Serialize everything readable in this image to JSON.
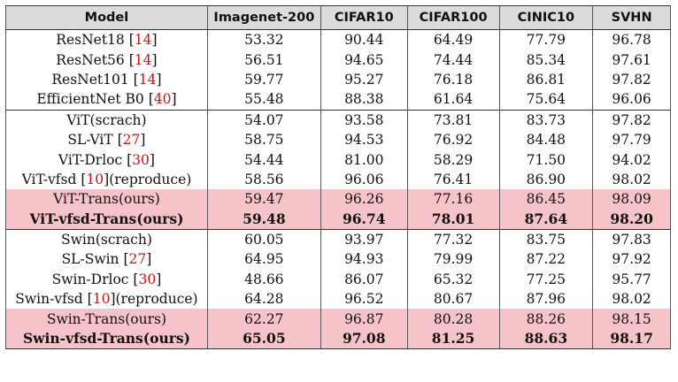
{
  "headers": [
    "Model",
    "Imagenet-200",
    "CIFAR10",
    "CIFAR100",
    "CINIC10",
    "SVHN"
  ],
  "groups": [
    {
      "rows": [
        {
          "model": "ResNet18",
          "ref": "14",
          "suffix": "",
          "values": [
            "53.32",
            "90.44",
            "64.49",
            "77.79",
            "96.78"
          ],
          "highlight": false,
          "bold": false
        },
        {
          "model": "ResNet56",
          "ref": "14",
          "suffix": "",
          "values": [
            "56.51",
            "94.65",
            "74.44",
            "85.34",
            "97.61"
          ],
          "highlight": false,
          "bold": false
        },
        {
          "model": "ResNet101",
          "ref": "14",
          "suffix": "",
          "values": [
            "59.77",
            "95.27",
            "76.18",
            "86.81",
            "97.82"
          ],
          "highlight": false,
          "bold": false
        },
        {
          "model": "EfficientNet B0",
          "ref": "40",
          "suffix": "",
          "values": [
            "55.48",
            "88.38",
            "61.64",
            "75.64",
            "96.06"
          ],
          "highlight": false,
          "bold": false
        }
      ]
    },
    {
      "rows": [
        {
          "model": "ViT(scrach)",
          "ref": "",
          "suffix": "",
          "values": [
            "54.07",
            "93.58",
            "73.81",
            "83.73",
            "97.82"
          ],
          "highlight": false,
          "bold": false
        },
        {
          "model": "SL-ViT",
          "ref": "27",
          "suffix": "",
          "values": [
            "58.75",
            "94.53",
            "76.92",
            "84.48",
            "97.79"
          ],
          "highlight": false,
          "bold": false
        },
        {
          "model": "ViT-Drloc",
          "ref": "30",
          "suffix": "",
          "values": [
            "54.44",
            "81.00",
            "58.29",
            "71.50",
            "94.02"
          ],
          "highlight": false,
          "bold": false
        },
        {
          "model": "ViT-vfsd",
          "ref": "10",
          "suffix": "(reproduce)",
          "values": [
            "58.56",
            "96.06",
            "76.41",
            "86.90",
            "98.02"
          ],
          "highlight": false,
          "bold": false
        },
        {
          "model": "ViT-Trans(ours)",
          "ref": "",
          "suffix": "",
          "values": [
            "59.47",
            "96.26",
            "77.16",
            "86.45",
            "98.09"
          ],
          "highlight": true,
          "bold": false
        },
        {
          "model": "ViT-vfsd-Trans(ours)",
          "ref": "",
          "suffix": "",
          "values": [
            "59.48",
            "96.74",
            "78.01",
            "87.64",
            "98.20"
          ],
          "highlight": true,
          "bold": true
        }
      ]
    },
    {
      "rows": [
        {
          "model": "Swin(scrach)",
          "ref": "",
          "suffix": "",
          "values": [
            "60.05",
            "93.97",
            "77.32",
            "83.75",
            "97.83"
          ],
          "highlight": false,
          "bold": false
        },
        {
          "model": "SL-Swin",
          "ref": "27",
          "suffix": "",
          "values": [
            "64.95",
            "94.93",
            "79.99",
            "87.22",
            "97.92"
          ],
          "highlight": false,
          "bold": false
        },
        {
          "model": "Swin-Drloc",
          "ref": "30",
          "suffix": "",
          "values": [
            "48.66",
            "86.07",
            "65.32",
            "77.25",
            "95.77"
          ],
          "highlight": false,
          "bold": false
        },
        {
          "model": "Swin-vfsd",
          "ref": "10",
          "suffix": "(reproduce)",
          "values": [
            "64.28",
            "96.52",
            "80.67",
            "87.96",
            "98.02"
          ],
          "highlight": false,
          "bold": false
        },
        {
          "model": "Swin-Trans(ours)",
          "ref": "",
          "suffix": "",
          "values": [
            "62.27",
            "96.87",
            "80.28",
            "88.26",
            "98.15"
          ],
          "highlight": true,
          "bold": false
        },
        {
          "model": "Swin-vfsd-Trans(ours)",
          "ref": "",
          "suffix": "",
          "values": [
            "65.05",
            "97.08",
            "81.25",
            "88.63",
            "98.17"
          ],
          "highlight": true,
          "bold": true
        }
      ]
    }
  ],
  "colors": {
    "highlight": "#f6c3c8",
    "header_bg": "#dcdcdc",
    "ref": "#d01010"
  }
}
